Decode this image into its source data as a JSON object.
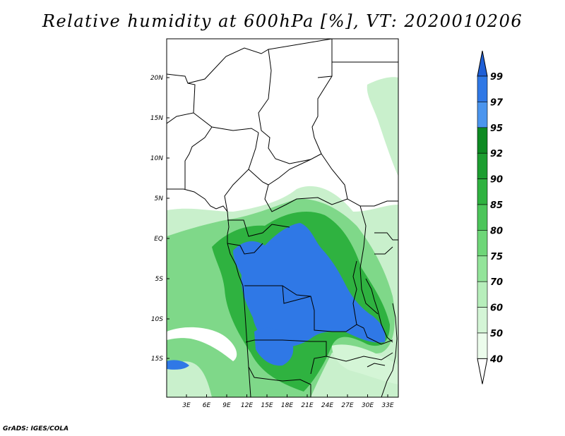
{
  "title": "Relative humidity at 600hPa [%], VT: 2020010206",
  "credit": "GrADS: IGES/COLA",
  "map": {
    "variable": "Relative humidity",
    "level": "600hPa",
    "unit": "%",
    "valid_time": "2020010206",
    "lat_ticks": [
      "20N",
      "15N",
      "10N",
      "5N",
      "EQ",
      "5S",
      "10S",
      "15S"
    ],
    "lon_ticks": [
      "3E",
      "6E",
      "9E",
      "12E",
      "15E",
      "18E",
      "21E",
      "24E",
      "27E",
      "30E",
      "33E"
    ]
  },
  "colorbar": {
    "levels": [
      "99",
      "97",
      "95",
      "92",
      "90",
      "85",
      "80",
      "75",
      "70",
      "60",
      "50",
      "40"
    ],
    "colors": [
      "#1f5fd6",
      "#2f78e6",
      "#4b95ee",
      "#0d8a22",
      "#1c9e30",
      "#2fb240",
      "#4cc55a",
      "#6ed678",
      "#93e49a",
      "#b7eebb",
      "#d4f5d6",
      "#ecfcec"
    ],
    "top_color": "#1f5fd6",
    "bottom_color": "#ffffff"
  }
}
